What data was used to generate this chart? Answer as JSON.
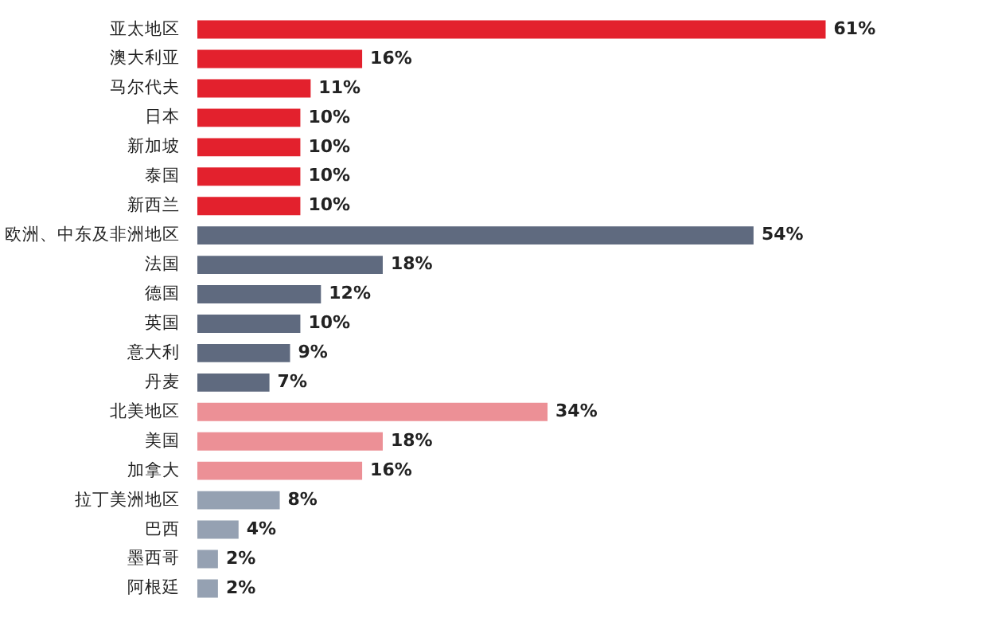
{
  "chart_data": {
    "type": "bar",
    "orientation": "horizontal",
    "categories": [
      "亚太地区",
      "澳大利亚",
      "马尔代夫",
      "日本",
      "新加坡",
      "泰国",
      "新西兰",
      "欧洲、中东及非洲地区",
      "法国",
      "德国",
      "英国",
      "意大利",
      "丹麦",
      "北美地区",
      "美国",
      "加拿大",
      "拉丁美洲地区",
      "巴西",
      "墨西哥",
      "阿根廷"
    ],
    "values": [
      61,
      16,
      11,
      10,
      10,
      10,
      10,
      54,
      18,
      12,
      10,
      9,
      7,
      34,
      18,
      16,
      8,
      4,
      2,
      2
    ],
    "colors": [
      "#e3212d",
      "#e3212d",
      "#e3212d",
      "#e3212d",
      "#e3212d",
      "#e3212d",
      "#e3212d",
      "#5f6a7f",
      "#5f6a7f",
      "#5f6a7f",
      "#5f6a7f",
      "#5f6a7f",
      "#5f6a7f",
      "#ec9096",
      "#ec9096",
      "#ec9096",
      "#95a1b2",
      "#95a1b2",
      "#95a1b2",
      "#95a1b2"
    ],
    "value_labels": [
      "61%",
      "16%",
      "11%",
      "10%",
      "10%",
      "10%",
      "10%",
      "54%",
      "18%",
      "12%",
      "10%",
      "9%",
      "7%",
      "34%",
      "18%",
      "16%",
      "8%",
      "4%",
      "2%",
      "2%"
    ],
    "legend": false
  }
}
